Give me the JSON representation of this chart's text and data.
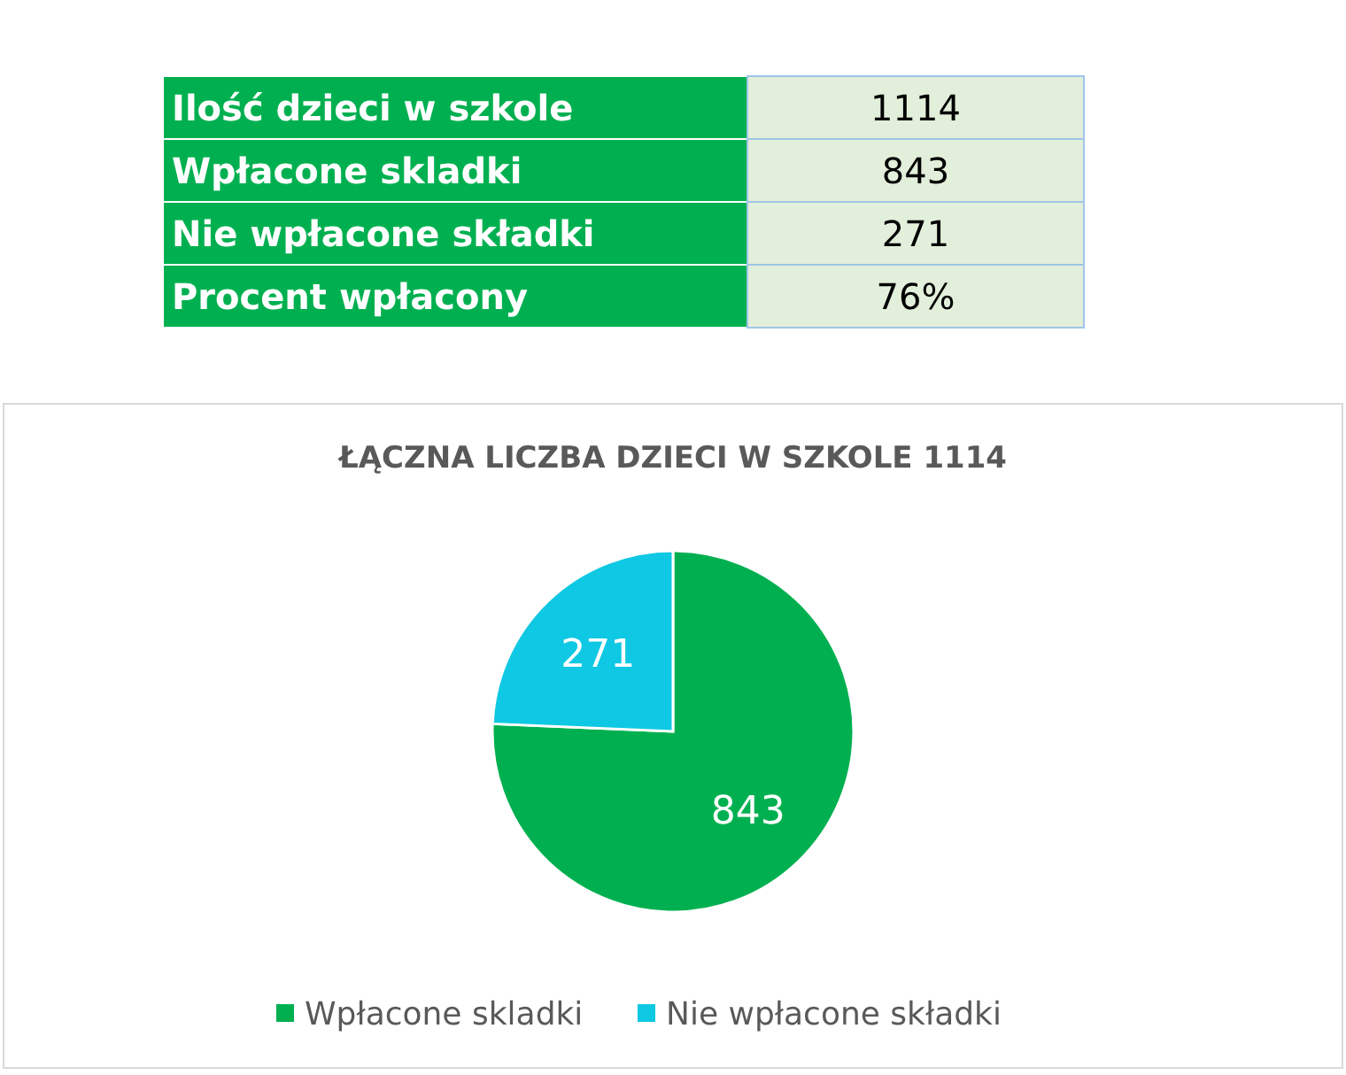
{
  "chart_data": [
    {
      "type": "other",
      "categories": [
        "Ilość dzieci w szkole",
        "Wpłacone skladki",
        "Nie wpłacone składki",
        "Procent wpłacony"
      ],
      "value_labels": [
        "1114",
        "843",
        "271",
        "76%"
      ],
      "colors": [
        "#00b050",
        "#00b050",
        "#00b050",
        "#00b050"
      ]
    },
    {
      "type": "pie",
      "title": "ŁĄCZNA LICZBA DZIECI W SZKOLE 1114",
      "categories": [
        "Wpłacone skladki",
        "Nie wpłacone składki"
      ],
      "values": [
        843,
        271
      ],
      "colors": [
        "#00b050",
        "#0fc8e3"
      ],
      "data_labels": true,
      "legend": "bottom"
    }
  ]
}
